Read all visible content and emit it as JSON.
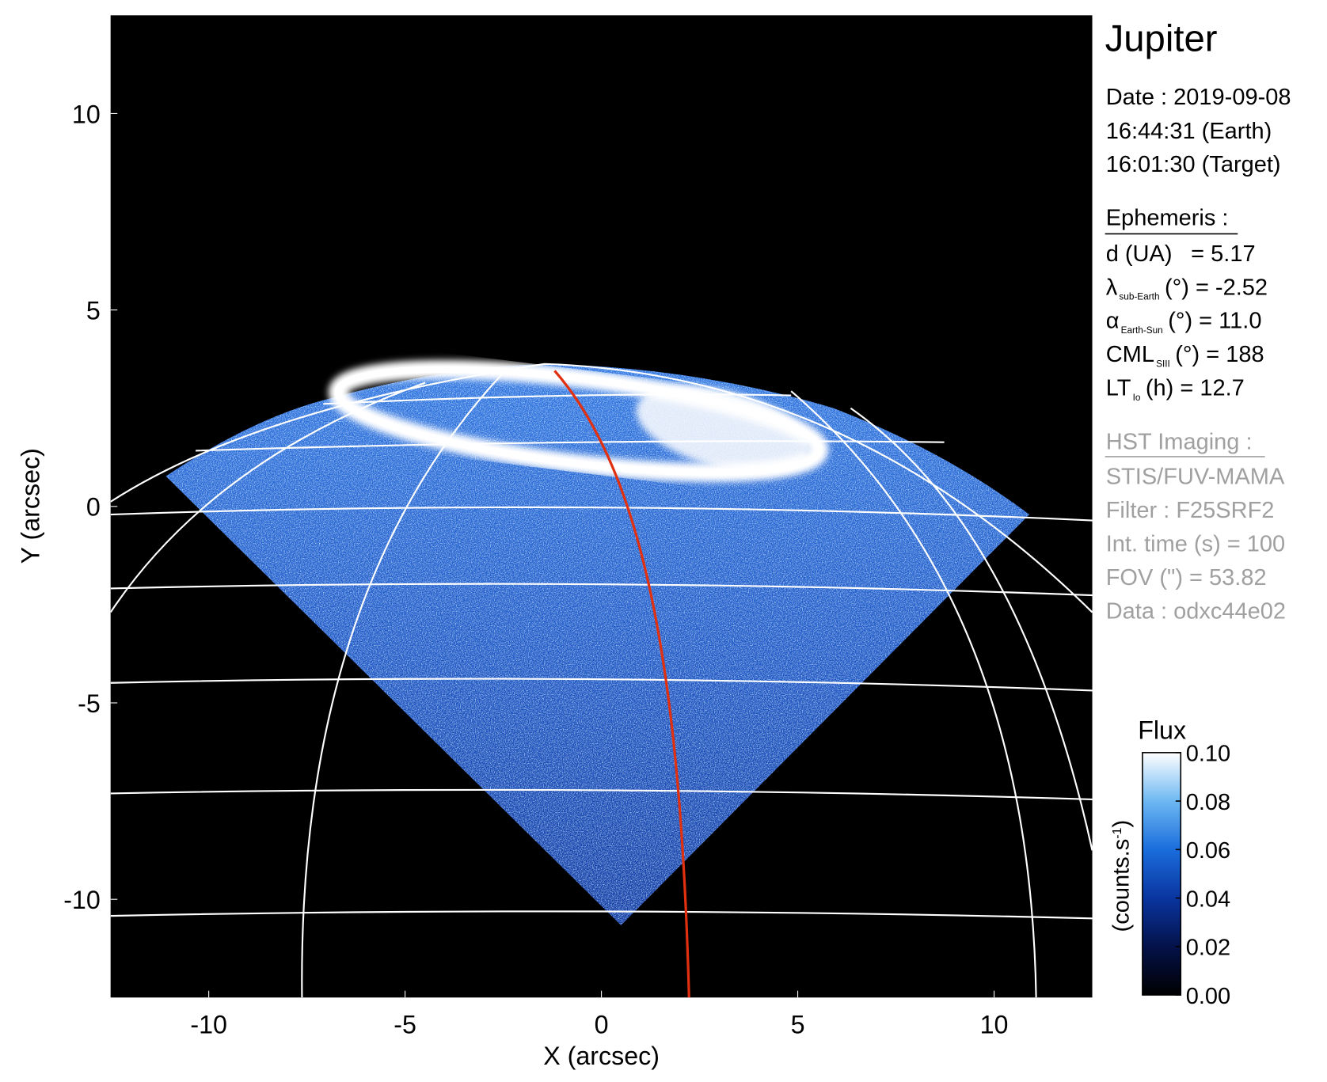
{
  "chart_data": {
    "type": "image",
    "title": "Jupiter",
    "xlabel": "X (arcsec)",
    "ylabel": "Y (arcsec)",
    "xlim": [
      -12.5,
      12.5
    ],
    "ylim": [
      -12.5,
      12.5
    ],
    "xticks": [
      -10,
      -5,
      0,
      5,
      10
    ],
    "yticks": [
      -10,
      -5,
      0,
      5,
      10
    ],
    "colorbar": {
      "title": "Flux",
      "label": "(counts.s",
      "label_superscript": "-1",
      "label_close": ")",
      "clim": [
        0,
        0.1
      ],
      "ticks": [
        {
          "value": 0,
          "label": "0.00"
        },
        {
          "value": 0.02,
          "label": "0.02"
        },
        {
          "value": 0.04,
          "label": "0.04"
        },
        {
          "value": 0.06,
          "label": "0.06"
        },
        {
          "value": 0.08,
          "label": "0.08"
        },
        {
          "value": 0.1,
          "label": "0.10"
        }
      ],
      "colormap": [
        "#000000",
        "#04124a",
        "#0a35a0",
        "#1a6ddc",
        "#6db8f2",
        "#ffffff"
      ]
    }
  },
  "info": {
    "date": "Date : 2019-09-08",
    "time_earth": "16:44:31 (Earth)",
    "time_target": "16:01:30 (Target)",
    "ephemeris": {
      "heading": "Ephemeris :",
      "items": [
        {
          "main": "d (UA)",
          "rest": "= 5.17"
        },
        {
          "main": "λ",
          "sub": "sub-Earth",
          "rest": "(°) = -2.52"
        },
        {
          "main": "α",
          "sub": "Earth-Sun",
          "rest": "(°) = 11.0"
        },
        {
          "main": "CML",
          "sub": "SIII",
          "rest": "(°) = 188"
        },
        {
          "main": "LT",
          "sub": "Io",
          "rest": "(h) = 12.7"
        }
      ]
    },
    "imaging": {
      "heading": "HST Imaging :",
      "lines": [
        "STIS/FUV-MAMA",
        "Filter : F25SRF2",
        "Int. time (s) = 100",
        "FOV (\") = 53.82",
        "Data : odxc44e02"
      ]
    }
  }
}
